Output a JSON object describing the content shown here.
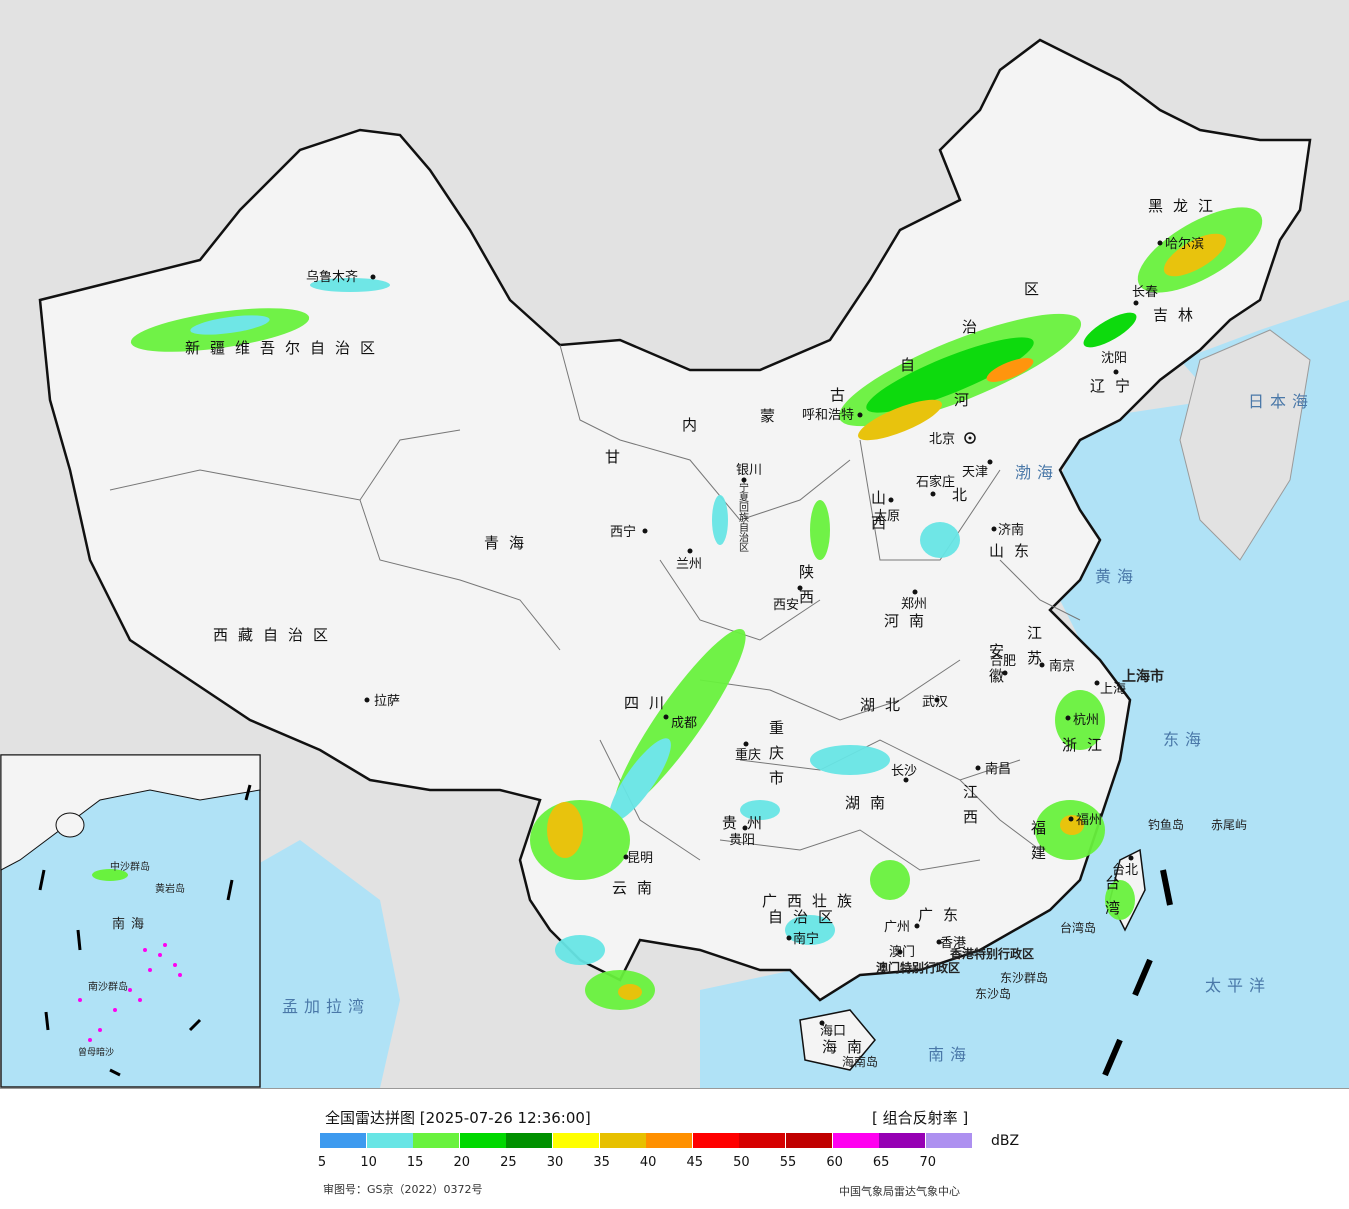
{
  "title": "全国雷达拼图 [2025-07-26 12:36:00]",
  "product": "[ 组合反射率 ]",
  "unit": "dBZ",
  "legend": {
    "colors": [
      "#3d9aef",
      "#68e5e5",
      "#69f23e",
      "#00d800",
      "#009000",
      "#ffff00",
      "#e7c000",
      "#ff9000",
      "#ff0000",
      "#d60000",
      "#c00000",
      "#ff00f0",
      "#9600b4",
      "#ad90f0"
    ],
    "ticks": [
      "5",
      "10",
      "15",
      "20",
      "25",
      "30",
      "35",
      "40",
      "45",
      "50",
      "55",
      "60",
      "65",
      "70"
    ]
  },
  "review_number": "审图号：GS京（2022）0372号",
  "credit": "中国气象局雷达气象中心",
  "regions": {
    "xinjiang": "新疆维吾尔自治区",
    "xizang": "西藏自治区",
    "qinghai": "青海",
    "gansu": "甘",
    "sichuan": "四川",
    "yunnan": "云南",
    "neimenggu_1": "内",
    "neimenggu_2": "蒙",
    "neimenggu_3": "古",
    "neimenggu_4": "自",
    "neimenggu_5": "治",
    "neimenggu_6": "区",
    "heilongjiang": "黑龙江",
    "jilin": "吉林",
    "liaoning": "辽宁",
    "hebei_1": "河",
    "hebei_2": "北",
    "shanxi": "山西",
    "shaanxi": "陕西",
    "henan": "河南",
    "shandong": "山东",
    "jiangsu": "江苏",
    "anhui": "安徽",
    "zhejiang": "浙江",
    "fujian": "福建",
    "jiangxi": "江西",
    "hubei": "湖北",
    "hunan": "湖南",
    "guizhou": "贵州",
    "chongqing": "重庆市",
    "guangxi_1": "广西壮族",
    "guangxi_2": "自治区",
    "guangdong": "广东",
    "hainan": "海南",
    "taiwan": "台湾",
    "ningxia": "宁夏回族自治区",
    "shanghai": "上海市",
    "hongkong_sar": "香港特别行政区",
    "macau_sar": "澳门特别行政区"
  },
  "cities": {
    "urumqi": "乌鲁木齐",
    "lhasa": "拉萨",
    "xining": "西宁",
    "lanzhou": "兰州",
    "yinchuan": "银川",
    "hohhot": "呼和浩特",
    "beijing": "北京",
    "tianjin": "天津",
    "shijiazhuang": "石家庄",
    "taiyuan": "太原",
    "jinan": "济南",
    "zhengzhou": "郑州",
    "xian": "西安",
    "harbin": "哈尔滨",
    "changchun": "长春",
    "shenyang": "沈阳",
    "hefei": "合肥",
    "nanjing": "南京",
    "shanghai": "上海",
    "hangzhou": "杭州",
    "wuhan": "武汉",
    "changsha": "长沙",
    "nanchang": "南昌",
    "fuzhou": "福州",
    "taipei": "台北",
    "chengdu": "成都",
    "chongqing_city": "重庆",
    "guiyang": "贵阳",
    "kunming": "昆明",
    "nanning": "南宁",
    "guangzhou": "广州",
    "hongkong": "香港",
    "macau": "澳门",
    "haikou": "海口"
  },
  "seas": {
    "bohai": "渤海",
    "yellow_sea": "黄海",
    "east_sea": "东海",
    "south_sea": "南海",
    "sea_of_japan": "日本海",
    "pacific": "太平洋",
    "bay_of_bengal": "孟加拉湾"
  },
  "islands": {
    "taiwan_island": "台湾岛",
    "hainan_island": "海南岛",
    "diaoyu": "钓鱼岛",
    "chiwei": "赤尾屿",
    "dongsha_islands": "东沙群岛",
    "dongsha_island": "东沙岛"
  },
  "inset": {
    "south_sea": "南海",
    "zhongsha": "中沙群岛",
    "huangyan": "黄岩岛",
    "nansha": "南沙群岛",
    "zengmu": "曾母暗沙"
  }
}
